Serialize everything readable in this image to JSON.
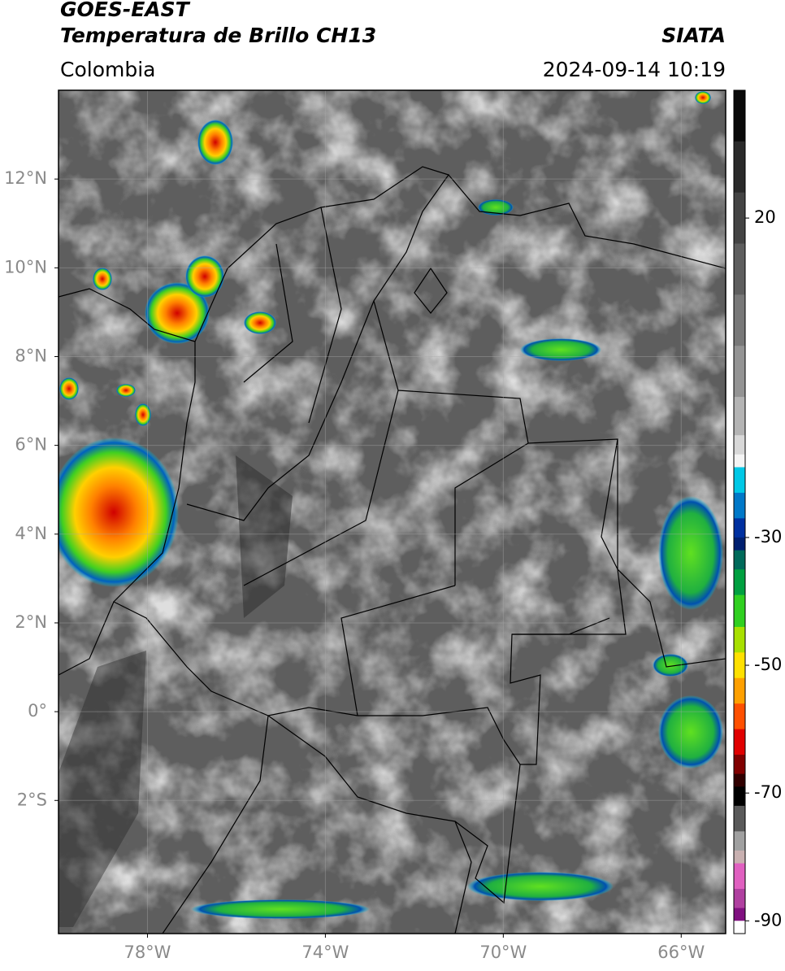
{
  "header": {
    "title": "GOES-EAST",
    "subtitle": "Temperatura de Brillo CH13",
    "source": "SIATA",
    "region": "Colombia",
    "datetime": "2024-09-14 10:19"
  },
  "map": {
    "type": "map",
    "xlim": [
      -80,
      -65
    ],
    "ylim": [
      -5,
      14
    ],
    "xticks": [
      {
        "value": -78,
        "label": "78°W"
      },
      {
        "value": -74,
        "label": "74°W"
      },
      {
        "value": -70,
        "label": "70°W"
      },
      {
        "value": -66,
        "label": "66°W"
      }
    ],
    "yticks": [
      {
        "value": 12,
        "label": "12°N"
      },
      {
        "value": 10,
        "label": "10°N"
      },
      {
        "value": 8,
        "label": "8°N"
      },
      {
        "value": 6,
        "label": "6°N"
      },
      {
        "value": 4,
        "label": "4°N"
      },
      {
        "value": 2,
        "label": "2°N"
      },
      {
        "value": 0,
        "label": "0°"
      },
      {
        "value": -2,
        "label": "2°S"
      }
    ],
    "grid": true
  },
  "colorbar": {
    "lim": [
      -92,
      40
    ],
    "ticks": [
      20,
      -30,
      -50,
      -70,
      -90
    ],
    "stops": [
      {
        "value": 40,
        "color": "#0a0a0a"
      },
      {
        "value": 32,
        "color": "#2a2a2a"
      },
      {
        "value": 24,
        "color": "#444444"
      },
      {
        "value": 16,
        "color": "#5e5e5e"
      },
      {
        "value": 8,
        "color": "#787878"
      },
      {
        "value": 0,
        "color": "#949494"
      },
      {
        "value": -8,
        "color": "#b4b4b4"
      },
      {
        "value": -14,
        "color": "#d8d8d8"
      },
      {
        "value": -17,
        "color": "#f4f4f4"
      },
      {
        "value": -19,
        "color": "#00c8e6"
      },
      {
        "value": -23,
        "color": "#0078c8"
      },
      {
        "value": -27,
        "color": "#0030a0"
      },
      {
        "value": -30,
        "color": "#002070"
      },
      {
        "value": -32,
        "color": "#006a5a"
      },
      {
        "value": -35,
        "color": "#00a040"
      },
      {
        "value": -39,
        "color": "#30d020"
      },
      {
        "value": -44,
        "color": "#a8e000"
      },
      {
        "value": -48,
        "color": "#ffe000"
      },
      {
        "value": -52,
        "color": "#ffa000"
      },
      {
        "value": -56,
        "color": "#ff5000"
      },
      {
        "value": -60,
        "color": "#e00000"
      },
      {
        "value": -64,
        "color": "#800000"
      },
      {
        "value": -67,
        "color": "#300000"
      },
      {
        "value": -69,
        "color": "#000000"
      },
      {
        "value": -72,
        "color": "#5a5a5a"
      },
      {
        "value": -76,
        "color": "#a0a0a0"
      },
      {
        "value": -79,
        "color": "#c8b0b0"
      },
      {
        "value": -81,
        "color": "#e060c0"
      },
      {
        "value": -85,
        "color": "#b040a0"
      },
      {
        "value": -88,
        "color": "#801080"
      },
      {
        "value": -90,
        "color": "#ffffff"
      }
    ]
  }
}
